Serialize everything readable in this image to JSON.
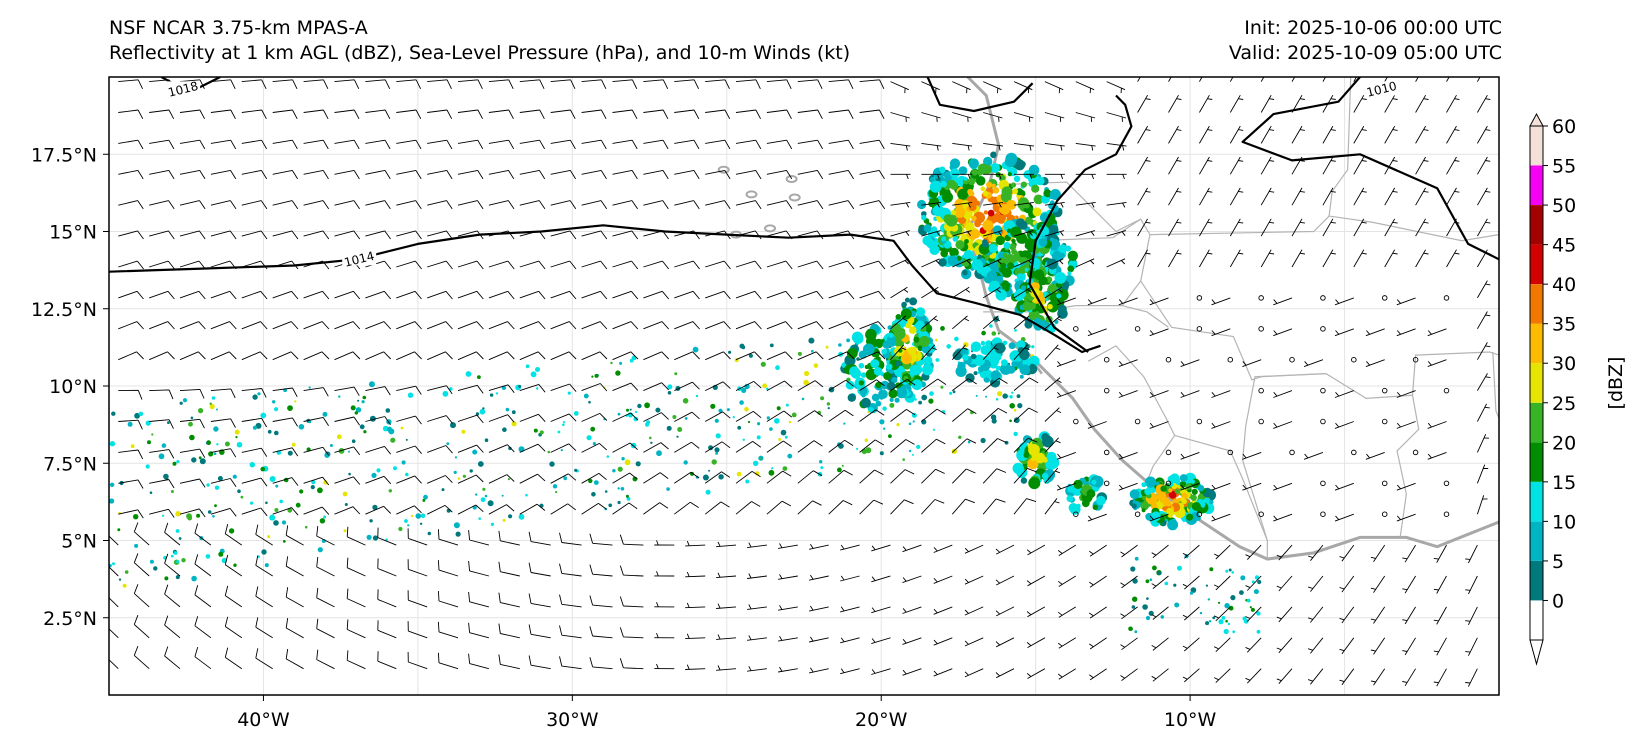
{
  "header": {
    "line1": "NSF NCAR 3.75-km MPAS-A",
    "line2": "Reflectivity at 1 km AGL (dBZ), Sea-Level Pressure (hPa), and 10-m Winds (kt)",
    "init": "Init: 2025-10-06 00:00 UTC",
    "valid": "Valid: 2025-10-09 05:00 UTC"
  },
  "map": {
    "lon_range": [
      -45,
      0
    ],
    "lat_range": [
      0,
      20
    ],
    "lat_ticks": [
      {
        "value": 2.5,
        "label": "2.5°N"
      },
      {
        "value": 5,
        "label": "5°N"
      },
      {
        "value": 7.5,
        "label": "7.5°N"
      },
      {
        "value": 10,
        "label": "10°N"
      },
      {
        "value": 12.5,
        "label": "12.5°N"
      },
      {
        "value": 15,
        "label": "15°N"
      },
      {
        "value": 17.5,
        "label": "17.5°N"
      }
    ],
    "lon_ticks": [
      {
        "value": -40,
        "label": "40°W"
      },
      {
        "value": -30,
        "label": "30°W"
      },
      {
        "value": -20,
        "label": "20°W"
      },
      {
        "value": -10,
        "label": "10°W"
      }
    ],
    "isobars": [
      {
        "label": "1014",
        "label_lon": -36.9,
        "label_lat": 14.1,
        "points": [
          [
            -45,
            13.7
          ],
          [
            -42,
            13.8
          ],
          [
            -39,
            13.9
          ],
          [
            -37,
            14.1
          ],
          [
            -35,
            14.6
          ],
          [
            -33,
            14.9
          ],
          [
            -31,
            15.0
          ],
          [
            -29,
            15.2
          ],
          [
            -27,
            15.0
          ],
          [
            -25,
            14.9
          ],
          [
            -23,
            14.8
          ],
          [
            -21,
            14.9
          ],
          [
            -19.6,
            14.7
          ],
          [
            -19.0,
            13.9
          ],
          [
            -18.2,
            13.0
          ],
          [
            -17,
            12.7
          ],
          [
            -15.5,
            12.3
          ],
          [
            -14.3,
            11.6
          ],
          [
            -13.5,
            11.1
          ],
          [
            -12.9,
            11.3
          ]
        ]
      },
      {
        "label": "1014",
        "label_lon": null,
        "label_lat": null,
        "points": [
          [
            -13.3,
            11.1
          ],
          [
            -14.4,
            11.9
          ],
          [
            -15.2,
            13.3
          ],
          [
            -15.0,
            14.7
          ],
          [
            -14.3,
            16.0
          ],
          [
            -13.4,
            17.0
          ],
          [
            -12.4,
            17.5
          ],
          [
            -11.9,
            18.4
          ],
          [
            -12.1,
            19.1
          ],
          [
            -12.4,
            19.4
          ]
        ]
      },
      {
        "label": "1010",
        "label_lon": -3.8,
        "label_lat": 19.6,
        "points": [
          [
            -18.5,
            20
          ],
          [
            -18.1,
            19.1
          ],
          [
            -17.0,
            18.9
          ],
          [
            -15.7,
            19.2
          ],
          [
            -15.1,
            19.8
          ]
        ]
      },
      {
        "label": "1010",
        "label_lon": null,
        "label_lat": null,
        "points": [
          [
            -4.5,
            20
          ],
          [
            -5.2,
            19.2
          ],
          [
            -7.3,
            18.8
          ],
          [
            -8.3,
            17.9
          ],
          [
            -6.7,
            17.3
          ],
          [
            -4.5,
            17.5
          ],
          [
            -2.0,
            16.4
          ],
          [
            -1.0,
            14.6
          ],
          [
            0,
            14.1
          ]
        ]
      },
      {
        "label": "1018",
        "label_lon": -42.6,
        "label_lat": 19.6,
        "points": [
          [
            -43.3,
            20
          ],
          [
            -42.4,
            19.5
          ],
          [
            -41.4,
            20
          ]
        ]
      }
    ],
    "colorbar": {
      "ticks": [
        "0",
        "5",
        "10",
        "15",
        "20",
        "25",
        "30",
        "35",
        "40",
        "45",
        "50",
        "55",
        "60"
      ],
      "colors": [
        "#00797c",
        "#00b5c3",
        "#00e3e5",
        "#008d00",
        "#36b426",
        "#e6e500",
        "#fdbb00",
        "#f07800",
        "#d20000",
        "#a30000",
        "#f500f5",
        "#f4e0d9"
      ],
      "label": "[dBZ]"
    }
  }
}
